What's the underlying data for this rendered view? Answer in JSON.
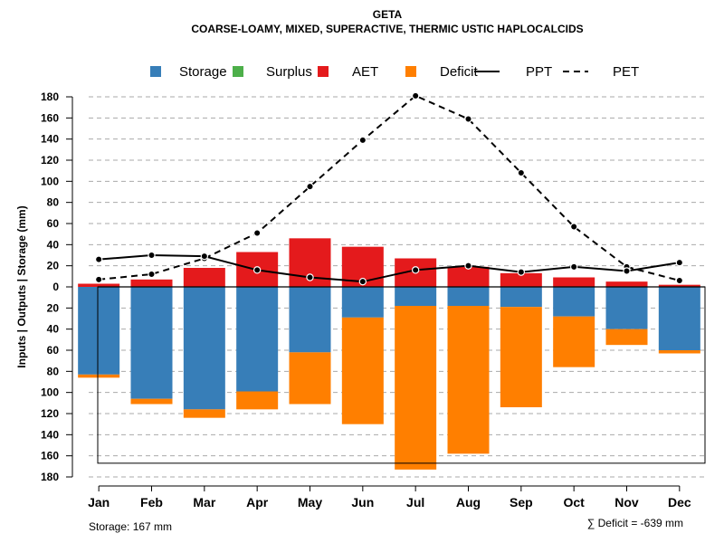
{
  "chart_data": {
    "type": "bar",
    "title": "GETA",
    "subtitle": "COARSE-LOAMY, MIXED, SUPERACTIVE, THERMIC USTIC HAPLOCALCIDS",
    "ylabel": "Inputs | Outputs | Storage     (mm)",
    "categories": [
      "Jan",
      "Feb",
      "Mar",
      "Apr",
      "May",
      "Jun",
      "Jul",
      "Aug",
      "Sep",
      "Oct",
      "Nov",
      "Dec"
    ],
    "ylim": [
      -180,
      180
    ],
    "yticks": [
      180,
      160,
      140,
      120,
      100,
      80,
      60,
      40,
      20,
      0,
      -20,
      -40,
      -60,
      -80,
      -100,
      -120,
      -140,
      -160,
      -180
    ],
    "ytick_labels": [
      "180",
      "160",
      "140",
      "120",
      "100",
      "80",
      "60",
      "40",
      "20",
      "0",
      "20",
      "40",
      "60",
      "80",
      "100",
      "120",
      "140",
      "160",
      "180"
    ],
    "grid": true,
    "legend": {
      "position": "top",
      "items": [
        {
          "name": "Storage",
          "color": "#377EB8",
          "kind": "box"
        },
        {
          "name": "Surplus",
          "color": "#4DAF4A",
          "kind": "box"
        },
        {
          "name": "AET",
          "color": "#E41A1C",
          "kind": "box"
        },
        {
          "name": "Deficit",
          "color": "#FF7F00",
          "kind": "box"
        },
        {
          "name": "PPT",
          "color": "#000000",
          "kind": "solid"
        },
        {
          "name": "PET",
          "color": "#000000",
          "kind": "dashed"
        }
      ]
    },
    "series": [
      {
        "name": "AET",
        "values": [
          3,
          7,
          18,
          33,
          46,
          38,
          27,
          19,
          13,
          9,
          5,
          2
        ]
      },
      {
        "name": "Storage",
        "values": [
          83,
          106,
          116,
          99,
          62,
          29,
          18,
          18,
          19,
          28,
          40,
          60
        ]
      },
      {
        "name": "Deficit",
        "values": [
          3,
          5,
          8,
          17,
          49,
          101,
          155,
          140,
          95,
          48,
          15,
          3
        ]
      },
      {
        "name": "PPT",
        "values": [
          26,
          30,
          29,
          16,
          9,
          5,
          16,
          20,
          14,
          19,
          15,
          23
        ]
      },
      {
        "name": "PET",
        "values": [
          7,
          12,
          27,
          51,
          95,
          139,
          181,
          159,
          108,
          57,
          19,
          6
        ]
      }
    ],
    "storage_capacity": 167,
    "storage_note": "Storage: 167 mm",
    "deficit_note": "∑ Deficit = -639 mm"
  }
}
